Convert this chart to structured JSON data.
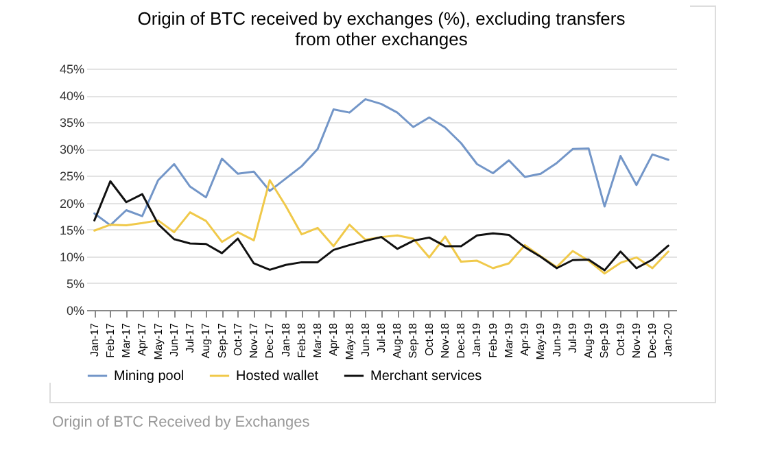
{
  "chart_data": {
    "type": "line",
    "title": "Origin of BTC received by exchanges (%), excluding transfers from other exchanges",
    "categories": [
      "Jan-17",
      "Feb-17",
      "Mar-17",
      "Apr-17",
      "May-17",
      "Jun-17",
      "Jul-17",
      "Aug-17",
      "Sep-17",
      "Oct-17",
      "Nov-17",
      "Dec-17",
      "Jan-18",
      "Feb-18",
      "Mar-18",
      "Apr-18",
      "May-18",
      "Jun-18",
      "Jul-18",
      "Aug-18",
      "Sep-18",
      "Oct-18",
      "Nov-18",
      "Dec-18",
      "Jan-19",
      "Feb-19",
      "Mar-19",
      "Apr-19",
      "May-19",
      "Jun-19",
      "Jul-19",
      "Aug-19",
      "Sep-19",
      "Oct-19",
      "Nov-19",
      "Dec-19",
      "Jan-20"
    ],
    "series": [
      {
        "name": "Mining pool",
        "color": "#7396c8",
        "values": [
          18,
          15.8,
          18.6,
          17.5,
          24.2,
          27.2,
          23,
          21,
          28.2,
          25.4,
          25.8,
          22.2,
          24.5,
          26.8,
          30,
          37.4,
          36.8,
          39.3,
          38.4,
          36.8,
          34.1,
          35.9,
          34,
          31.1,
          27.2,
          25.5,
          27.9,
          24.8,
          25.4,
          27.4,
          30,
          30.1,
          19.3,
          28.7,
          23.3,
          29,
          28
        ]
      },
      {
        "name": "Hosted wallet",
        "color": "#f0c94a",
        "values": [
          14.8,
          15.9,
          15.8,
          16.2,
          16.7,
          14.5,
          18.2,
          16.6,
          12.7,
          14.5,
          13,
          24.2,
          19.4,
          14.1,
          15.3,
          11.9,
          15.9,
          13.1,
          13.6,
          13.9,
          13.3,
          9.8,
          13.7,
          9,
          9.2,
          7.8,
          8.7,
          12.1,
          10,
          8,
          11,
          9.2,
          6.8,
          8.8,
          9.8,
          7.8,
          10.9
        ]
      },
      {
        "name": "Merchant services",
        "color": "#111111",
        "values": [
          16.7,
          24,
          20.1,
          21.6,
          16,
          13.2,
          12.4,
          12.3,
          10.6,
          13.3,
          8.7,
          7.5,
          8.4,
          8.9,
          8.9,
          11.2,
          12.1,
          12.9,
          13.6,
          11.4,
          12.9,
          13.5,
          11.9,
          11.9,
          13.9,
          14.3,
          14,
          11.7,
          9.9,
          7.8,
          9.3,
          9.4,
          7.4,
          10.9,
          7.8,
          9.4,
          12
        ]
      }
    ],
    "ylim": [
      0,
      45
    ],
    "yticks": [
      {
        "value": 0,
        "label": "0%"
      },
      {
        "value": 5,
        "label": "5%"
      },
      {
        "value": 10,
        "label": "10%"
      },
      {
        "value": 15,
        "label": "15%"
      },
      {
        "value": 20,
        "label": "20%"
      },
      {
        "value": 25,
        "label": "25%"
      },
      {
        "value": 30,
        "label": "30%"
      },
      {
        "value": 35,
        "label": "35%"
      },
      {
        "value": 40,
        "label": "40%"
      },
      {
        "value": 45,
        "label": "45%"
      }
    ],
    "grid": "y",
    "legend": "bottom",
    "annotations": [
      "Origin of BTC Received by Exchanges"
    ]
  }
}
